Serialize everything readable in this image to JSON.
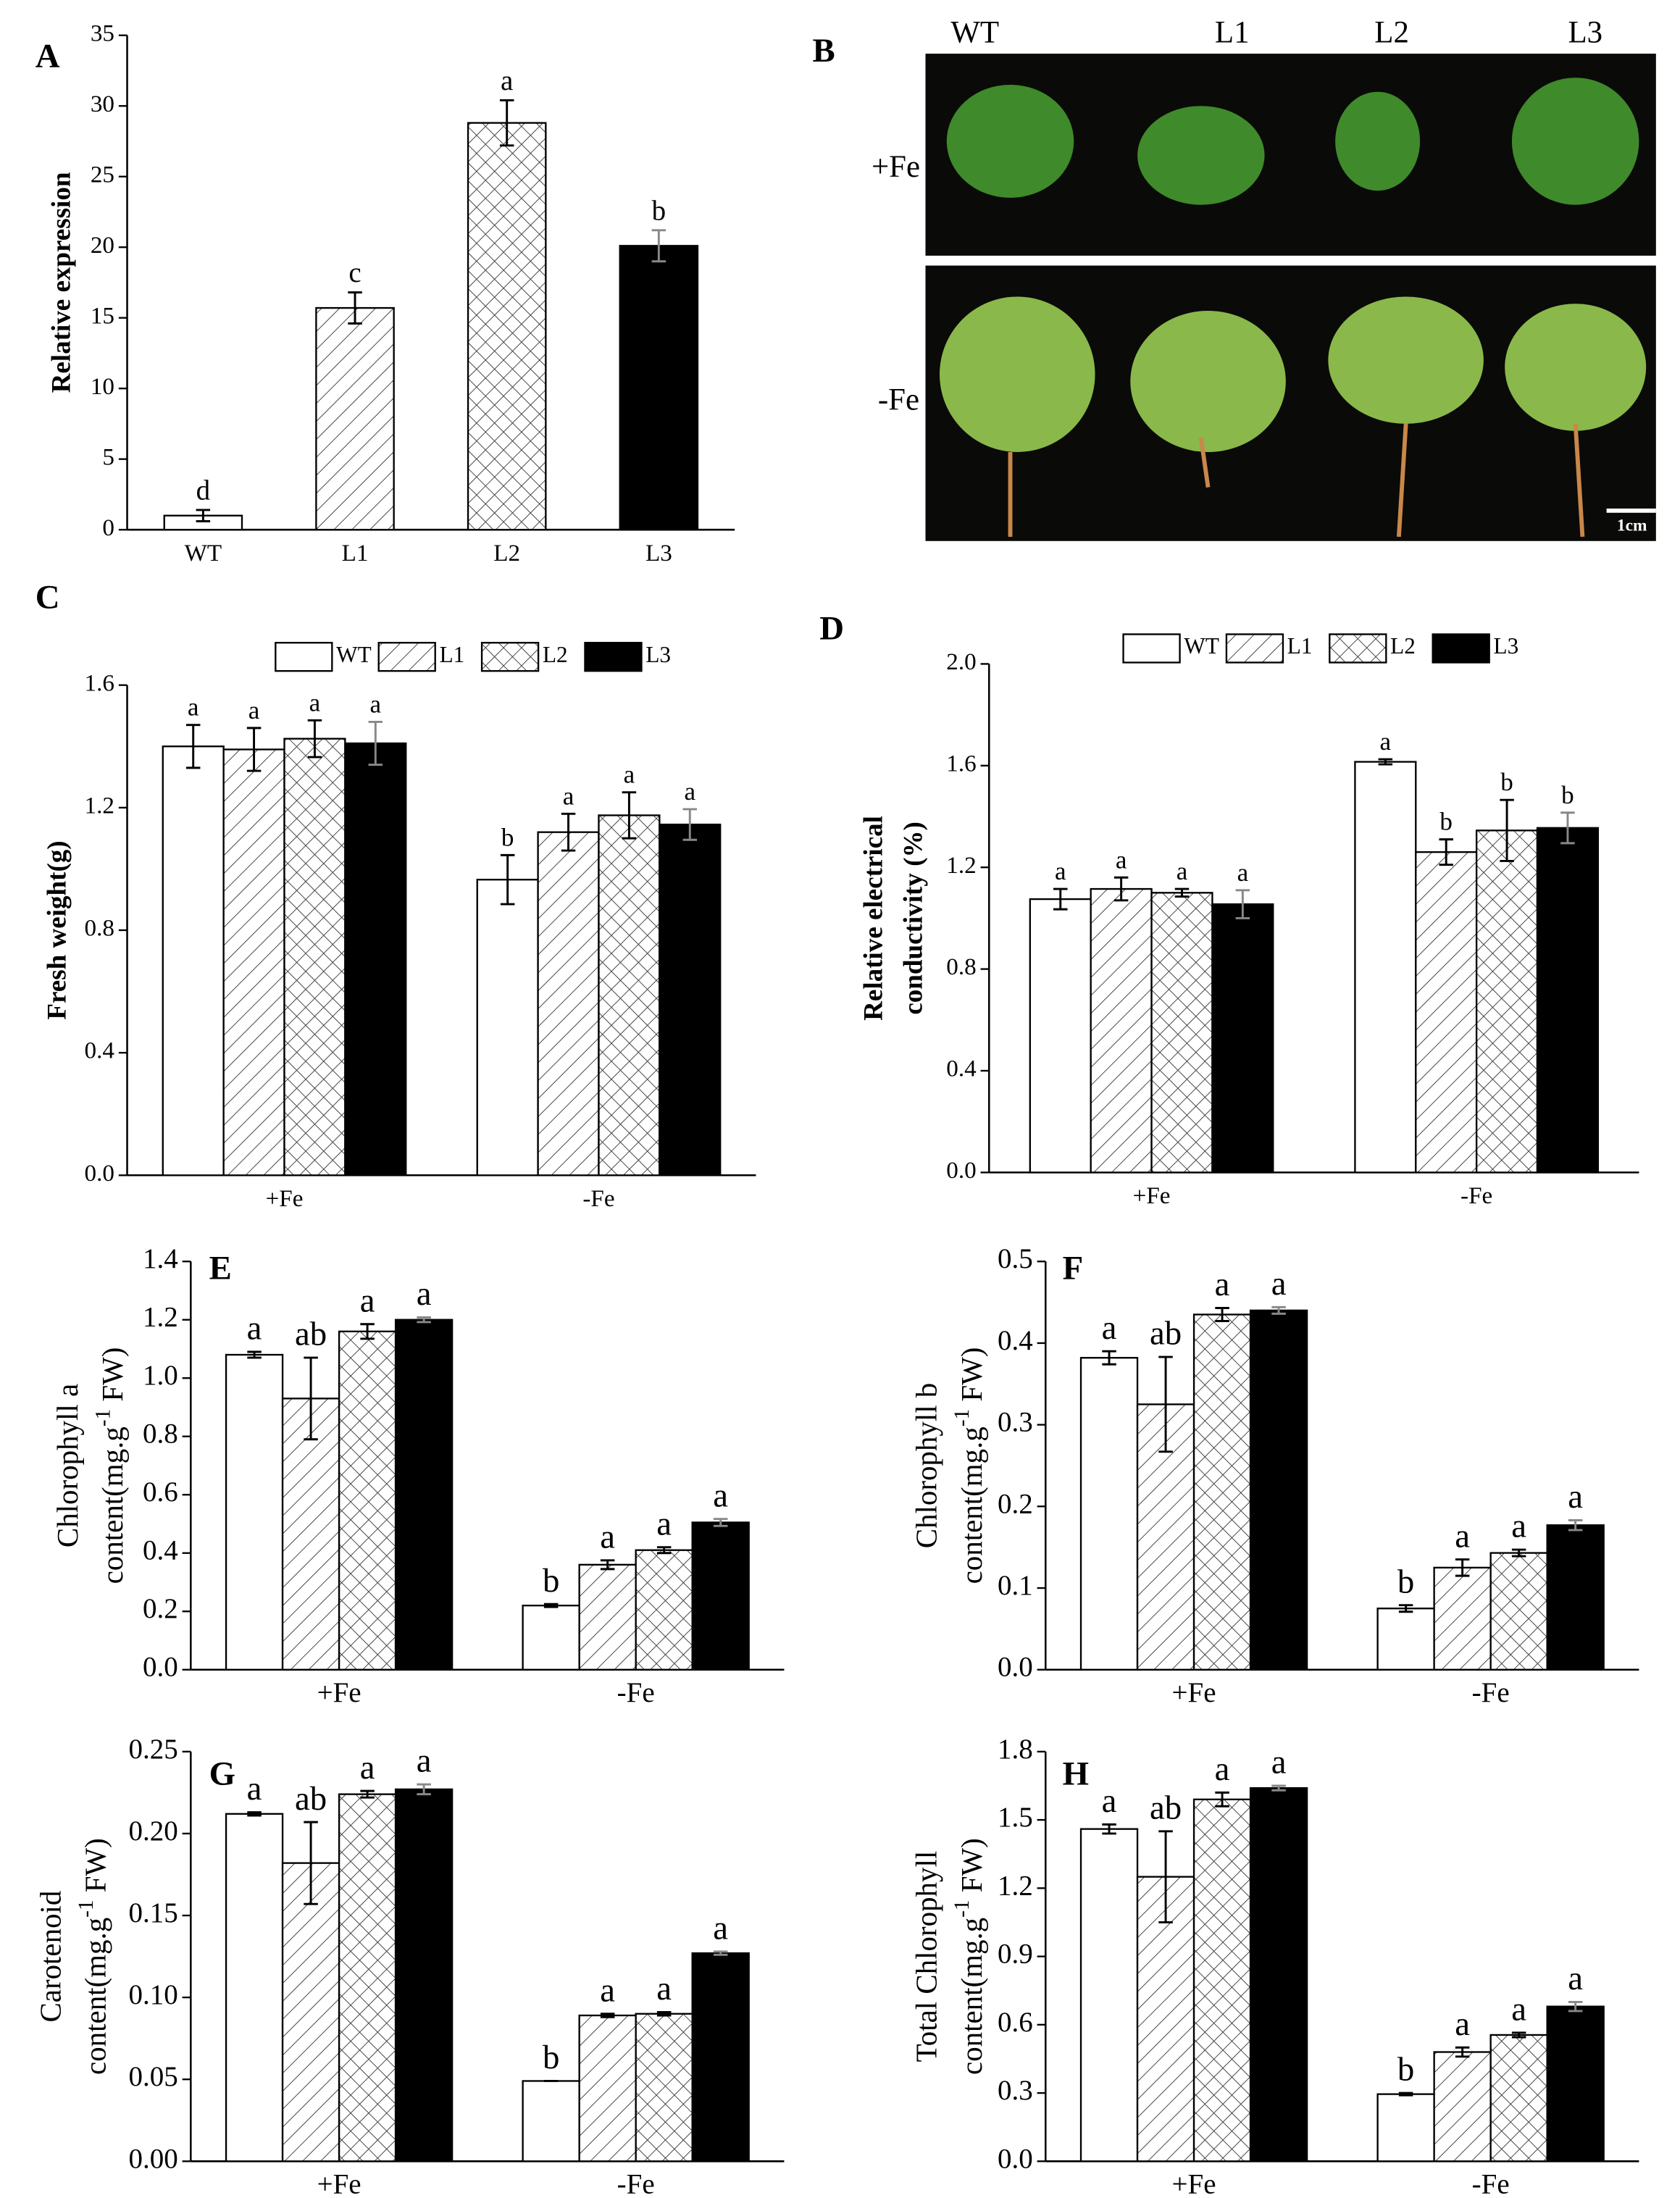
{
  "chart_data": [
    {
      "type": "bar",
      "panel": "A",
      "ylabel": [
        "Relative expression"
      ],
      "categories": [
        "WT",
        "L1",
        "L2",
        "L3"
      ],
      "values": [
        1,
        15.7,
        28.8,
        20.1
      ],
      "errors": [
        0.4,
        1.1,
        1.6,
        1.1
      ],
      "letters": [
        "d",
        "c",
        "a",
        "b"
      ],
      "patterns": [
        "none",
        "hatch",
        "crosshatch",
        "solid"
      ],
      "ylim": [
        0,
        35
      ],
      "yticks": [
        0,
        5,
        10,
        15,
        20,
        25,
        30,
        35
      ]
    },
    {
      "type": "bar",
      "panel": "C",
      "ylabel": [
        "Fresh weight(g)"
      ],
      "categories": [
        "+Fe",
        "-Fe"
      ],
      "series": [
        {
          "name": "WT",
          "pattern": "none",
          "values": [
            1.4,
            0.965
          ],
          "errors": [
            0.07,
            0.08
          ],
          "letters": [
            "a",
            "b"
          ]
        },
        {
          "name": "L1",
          "pattern": "hatch",
          "values": [
            1.39,
            1.12
          ],
          "errors": [
            0.07,
            0.06
          ],
          "letters": [
            "a",
            "a"
          ]
        },
        {
          "name": "L2",
          "pattern": "crosshatch",
          "values": [
            1.425,
            1.175
          ],
          "errors": [
            0.06,
            0.075
          ],
          "letters": [
            "a",
            "a"
          ]
        },
        {
          "name": "L3",
          "pattern": "solid",
          "values": [
            1.41,
            1.145
          ],
          "errors": [
            0.07,
            0.05
          ],
          "letters": [
            "a",
            "a"
          ]
        }
      ],
      "ylim": [
        0,
        1.6
      ],
      "yticks": [
        {
          "value": 0,
          "label": "0.0"
        },
        0.4,
        0.8,
        1.2,
        1.6
      ],
      "legend": "top"
    },
    {
      "type": "bar",
      "panel": "D",
      "ylabel": [
        "Relative electrical",
        "conductivity (%)"
      ],
      "categories": [
        "+Fe",
        "-Fe"
      ],
      "series": [
        {
          "name": "WT",
          "pattern": "none",
          "values": [
            1.075,
            1.615
          ],
          "errors": [
            0.04,
            0.01
          ],
          "letters": [
            "a",
            "a"
          ]
        },
        {
          "name": "L1",
          "pattern": "hatch",
          "values": [
            1.115,
            1.26
          ],
          "errors": [
            0.045,
            0.05
          ],
          "letters": [
            "a",
            "b"
          ]
        },
        {
          "name": "L2",
          "pattern": "crosshatch",
          "values": [
            1.1,
            1.345
          ],
          "errors": [
            0.015,
            0.12
          ],
          "letters": [
            "a",
            "b"
          ]
        },
        {
          "name": "L3",
          "pattern": "solid",
          "values": [
            1.055,
            1.355
          ],
          "errors": [
            0.055,
            0.06
          ],
          "letters": [
            "a",
            "b"
          ]
        }
      ],
      "ylim": [
        0,
        2
      ],
      "yticks": [
        {
          "value": 0,
          "label": "0.0"
        },
        0.4,
        0.8,
        1.2,
        1.6,
        {
          "value": 2,
          "label": "2.0"
        }
      ],
      "legend": "top"
    },
    {
      "type": "bar",
      "panel": "E",
      "ylabel": [
        "Chlorophyll a"
      ],
      "ylabel_unit": {
        "base": "content(mg.g",
        "sup": "-1",
        "tail": " FW)"
      },
      "categories": [
        "+Fe",
        "-Fe"
      ],
      "series": [
        {
          "pattern": "none",
          "values": [
            1.08,
            0.22
          ],
          "errors": [
            0.01,
            0.005
          ],
          "letters": [
            "a",
            "b"
          ]
        },
        {
          "pattern": "hatch",
          "values": [
            0.93,
            0.36
          ],
          "errors": [
            0.14,
            0.015
          ],
          "letters": [
            "ab",
            "a"
          ]
        },
        {
          "pattern": "crosshatch",
          "values": [
            1.16,
            0.41
          ],
          "errors": [
            0.025,
            0.01
          ],
          "letters": [
            "a",
            "a"
          ]
        },
        {
          "pattern": "solid",
          "values": [
            1.2,
            0.505
          ],
          "errors": [
            0.008,
            0.012
          ],
          "letters": [
            "a",
            "a"
          ]
        }
      ],
      "ylim": [
        0,
        1.4
      ],
      "yticks": [
        {
          "value": 0,
          "label": "0.0"
        },
        0.2,
        0.4,
        0.6,
        0.8,
        {
          "value": 1,
          "label": "1.0"
        },
        1.2,
        1.4
      ]
    },
    {
      "type": "bar",
      "panel": "F",
      "ylabel": [
        "Chlorophyll b"
      ],
      "ylabel_unit": {
        "base": "content(mg.g",
        "sup": "-1",
        "tail": " FW)"
      },
      "categories": [
        "+Fe",
        "-Fe"
      ],
      "series": [
        {
          "pattern": "none",
          "values": [
            0.382,
            0.075
          ],
          "errors": [
            0.008,
            0.004
          ],
          "letters": [
            "a",
            "b"
          ]
        },
        {
          "pattern": "hatch",
          "values": [
            0.325,
            0.125
          ],
          "errors": [
            0.058,
            0.01
          ],
          "letters": [
            "ab",
            "a"
          ]
        },
        {
          "pattern": "crosshatch",
          "values": [
            0.435,
            0.143
          ],
          "errors": [
            0.008,
            0.004
          ],
          "letters": [
            "a",
            "a"
          ]
        },
        {
          "pattern": "solid",
          "values": [
            0.44,
            0.177
          ],
          "errors": [
            0.004,
            0.006
          ],
          "letters": [
            "a",
            "a"
          ]
        }
      ],
      "ylim": [
        0,
        0.5
      ],
      "yticks": [
        {
          "value": 0,
          "label": "0.0"
        },
        0.1,
        0.2,
        0.3,
        0.4,
        0.5
      ]
    },
    {
      "type": "bar",
      "panel": "G",
      "ylabel": [
        "Carotenoid"
      ],
      "ylabel_unit": {
        "base": "content(mg.g",
        "sup": "-1",
        "tail": " FW)"
      },
      "categories": [
        "+Fe",
        "-Fe"
      ],
      "series": [
        {
          "pattern": "none",
          "values": [
            0.212,
            0.049
          ],
          "errors": [
            0.001,
            0
          ],
          "letters": [
            "a",
            "b"
          ]
        },
        {
          "pattern": "hatch",
          "values": [
            0.182,
            0.089
          ],
          "errors": [
            0.025,
            0.001
          ],
          "letters": [
            "ab",
            "a"
          ]
        },
        {
          "pattern": "crosshatch",
          "values": [
            0.224,
            0.09
          ],
          "errors": [
            0.002,
            0.001
          ],
          "letters": [
            "a",
            "a"
          ]
        },
        {
          "pattern": "solid",
          "values": [
            0.227,
            0.127
          ],
          "errors": [
            0.003,
            0.001
          ],
          "letters": [
            "a",
            "a"
          ]
        }
      ],
      "ylim": [
        0,
        0.25
      ],
      "yticks": [
        {
          "value": 0,
          "label": "0.00"
        },
        0.05,
        {
          "value": 0.1,
          "label": "0.10"
        },
        0.15,
        {
          "value": 0.2,
          "label": "0.20"
        },
        0.25
      ]
    },
    {
      "type": "bar",
      "panel": "H",
      "ylabel": [
        "Total Chlorophyll"
      ],
      "ylabel_unit": {
        "base": "content(mg.g",
        "sup": "-1",
        "tail": " FW)"
      },
      "categories": [
        "+Fe",
        "-Fe"
      ],
      "series": [
        {
          "pattern": "none",
          "values": [
            1.46,
            0.295
          ],
          "errors": [
            0.02,
            0.005
          ],
          "letters": [
            "a",
            "b"
          ]
        },
        {
          "pattern": "hatch",
          "values": [
            1.25,
            0.48
          ],
          "errors": [
            0.2,
            0.02
          ],
          "letters": [
            "ab",
            "a"
          ]
        },
        {
          "pattern": "crosshatch",
          "values": [
            1.59,
            0.555
          ],
          "errors": [
            0.03,
            0.01
          ],
          "letters": [
            "a",
            "a"
          ]
        },
        {
          "pattern": "solid",
          "values": [
            1.64,
            0.68
          ],
          "errors": [
            0.01,
            0.02
          ],
          "letters": [
            "a",
            "a"
          ]
        }
      ],
      "ylim": [
        0,
        1.8
      ],
      "yticks": [
        {
          "value": 0,
          "label": "0.0"
        },
        0.3,
        0.6,
        0.9,
        1.2,
        1.5,
        1.8
      ]
    }
  ],
  "photo_panel": {
    "panel": "B",
    "columns": [
      "WT",
      "L1",
      "L2",
      "L3"
    ],
    "rows": [
      "+Fe",
      "-Fe"
    ],
    "scale_bar": "1cm"
  }
}
